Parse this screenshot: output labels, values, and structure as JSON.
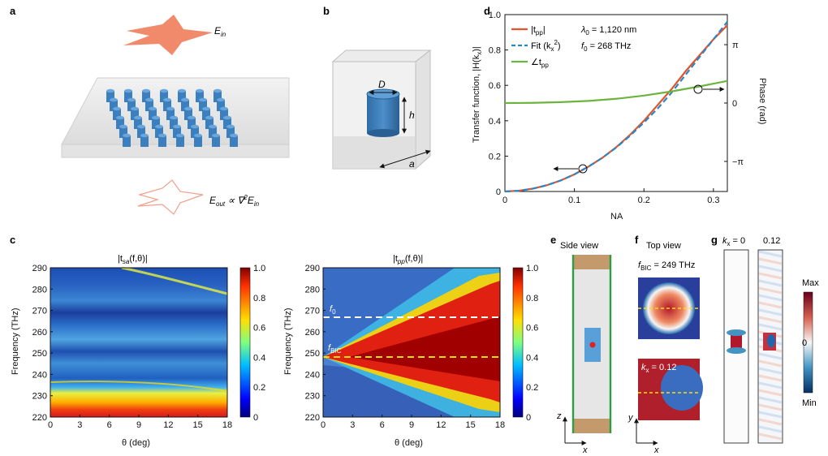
{
  "panels": {
    "a": {
      "label": "a",
      "ein": "E",
      "ein_sub": "in",
      "eout_pre": "E",
      "eout_sub": "out",
      "eout_rel": " ∝ ∇",
      "eout_sup": "2",
      "eout_post": "E",
      "eout_post_sub": "in"
    },
    "b": {
      "label": "b",
      "d_label": "D",
      "h_label": "h",
      "a_label": "a"
    },
    "d": {
      "label": "d",
      "ylabel": "Transfer function, |H(k",
      "ylabel_sub": "x",
      "ylabel_end": ")|",
      "ylabel_right": "Phase (rad)",
      "xlabel": "NA",
      "legend": [
        {
          "text": "|t",
          "sub": "pp",
          "end": "|",
          "color": "#e2542b"
        },
        {
          "text": "Fit (k",
          "sub": "x",
          "sup": "2",
          "end": ")",
          "color": "#2b86c6"
        },
        {
          "text": "∠t",
          "sub": "pp",
          "end": "",
          "color": "#6db33f"
        }
      ],
      "lambda_text": "λ",
      "lambda_sub": "0",
      "lambda_val": " = 1,120 nm",
      "f0_text": "f",
      "f0_sub": "0",
      "f0_val": " = 268 THz"
    },
    "c": {
      "label": "c",
      "left_title_pre": "|t",
      "left_title_sub": "sa",
      "left_title_post": "(f,θ)|",
      "right_title_pre": "|t",
      "right_title_sub": "pp",
      "right_title_post": "(f,θ)|",
      "ylabel": "Frequency (THz)",
      "xlabel": "θ (deg)",
      "f0_label": "f",
      "f0_sub": "0",
      "fbic_label": "f",
      "fbic_sub": "BIC"
    },
    "e": {
      "label": "e",
      "title": "Side view",
      "ax_z": "z",
      "ax_x": "x"
    },
    "f": {
      "label": "f",
      "title": "Top view",
      "fbic_pre": "f",
      "fbic_sub": "BIC",
      "fbic_val": " = 249 THz",
      "kx_pre": "k",
      "kx_sub": "x",
      "kx_val": " = 0.12",
      "ax_y": "y",
      "ax_x": "x"
    },
    "g": {
      "label": "g",
      "k0_pre": "k",
      "k0_sub": "x",
      "k0_val": " = 0",
      "k1_val": "0.12",
      "cb_max": "Max",
      "cb_zero": "0",
      "cb_min": "Min"
    }
  },
  "chart_data": [
    {
      "id": "d",
      "type": "line",
      "xlabel": "NA",
      "ylabel": "Transfer function, |H(kx)|",
      "ylabel_right": "Phase (rad)",
      "xlim": [
        0,
        0.32
      ],
      "ylim": [
        0,
        1.0
      ],
      "x_ticks": [
        0,
        0.1,
        0.2,
        0.3
      ],
      "x_tick_labels": [
        "0",
        "0.1",
        "0.2",
        "0.3"
      ],
      "y_ticks": [
        0,
        0.2,
        0.4,
        0.6,
        0.8,
        1.0
      ],
      "y_tick_labels": [
        "0",
        "0.2",
        "0.4",
        "0.6",
        "0.8",
        "1.0"
      ],
      "y_right_ticks": [
        "π",
        "0",
        "−π"
      ],
      "series": [
        {
          "name": "|tpp|",
          "color": "#e2542b",
          "style": "solid",
          "x": [
            0,
            0.02,
            0.04,
            0.06,
            0.08,
            0.1,
            0.12,
            0.14,
            0.16,
            0.18,
            0.2,
            0.22,
            0.24,
            0.26,
            0.28,
            0.3,
            0.32
          ],
          "y": [
            0,
            0.004,
            0.016,
            0.035,
            0.062,
            0.097,
            0.14,
            0.19,
            0.25,
            0.32,
            0.4,
            0.49,
            0.58,
            0.68,
            0.77,
            0.86,
            0.94
          ]
        },
        {
          "name": "Fit (kx2)",
          "color": "#2b86c6",
          "style": "dashed",
          "x": [
            0,
            0.02,
            0.04,
            0.06,
            0.08,
            0.1,
            0.12,
            0.14,
            0.16,
            0.18,
            0.2,
            0.22,
            0.24,
            0.26,
            0.28,
            0.3,
            0.32
          ],
          "y": [
            0,
            0.004,
            0.016,
            0.035,
            0.062,
            0.097,
            0.14,
            0.19,
            0.248,
            0.315,
            0.39,
            0.47,
            0.56,
            0.66,
            0.76,
            0.86,
            0.96
          ]
        },
        {
          "name": "∠tpp",
          "color": "#6db33f",
          "style": "solid",
          "axis": "right",
          "x": [
            0,
            0.04,
            0.08,
            0.12,
            0.16,
            0.2,
            0.24,
            0.28,
            0.32
          ],
          "y": [
            0.5,
            0.501,
            0.505,
            0.512,
            0.524,
            0.542,
            0.566,
            0.594,
            0.625
          ]
        }
      ]
    },
    {
      "id": "c-left",
      "type": "heatmap",
      "title": "|tsa(f,θ)|",
      "xlabel": "θ (deg)",
      "ylabel": "Frequency (THz)",
      "xlim": [
        0,
        18
      ],
      "ylim": [
        220,
        290
      ],
      "x_ticks": [
        0,
        3,
        6,
        9,
        12,
        15,
        18
      ],
      "y_ticks": [
        220,
        230,
        240,
        250,
        260,
        270,
        280,
        290
      ],
      "colorbar_ticks": [
        "0",
        "0.2",
        "0.4",
        "0.6",
        "0.8",
        "1.0"
      ]
    },
    {
      "id": "c-right",
      "type": "heatmap",
      "title": "|tpp(f,θ)|",
      "xlabel": "θ (deg)",
      "ylabel": "Frequency (THz)",
      "xlim": [
        0,
        18
      ],
      "ylim": [
        220,
        290
      ],
      "x_ticks": [
        0,
        3,
        6,
        9,
        12,
        15,
        18
      ],
      "y_ticks": [
        220,
        230,
        240,
        250,
        260,
        270,
        280,
        290
      ],
      "colorbar_ticks": [
        "0",
        "0.2",
        "0.4",
        "0.6",
        "0.8",
        "1.0"
      ],
      "annotations": [
        {
          "label": "f0",
          "value": 268
        },
        {
          "label": "fBIC",
          "value": 249
        }
      ]
    }
  ]
}
